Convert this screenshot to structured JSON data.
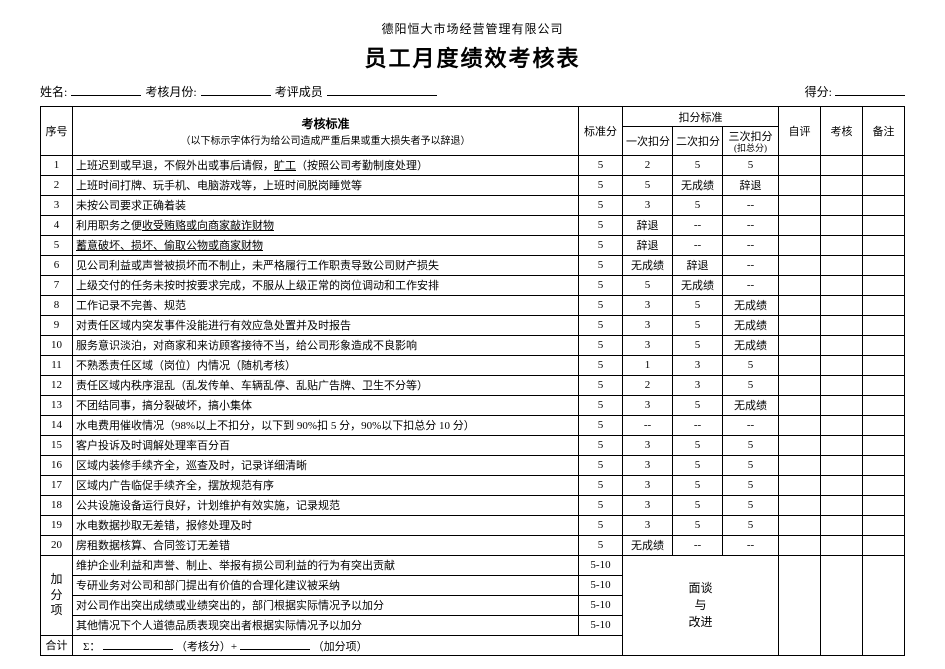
{
  "header": {
    "company": "德阳恒大市场经营管理有限公司",
    "title": "员工月度绩效考核表"
  },
  "meta": {
    "name_label": "姓名:",
    "month_label": "考核月份:",
    "reviewer_label": "考评成员",
    "score_label": "得分:"
  },
  "thead": {
    "seq": "序号",
    "std_title": "考核标准",
    "std_sub": "（以下标示字体行为给公司造成严重后果或重大损失者予以辞退）",
    "base": "标准分",
    "deduct_group": "扣分标准",
    "d1": "一次扣分",
    "d2": "二次扣分",
    "d3_top": "三次扣分",
    "d3_sub": "(扣总分)",
    "self": "自评",
    "check": "考核",
    "note": "备注"
  },
  "rows": [
    {
      "seq": "1",
      "text": "上班迟到或早退，不假外出或事后请假，",
      "ul": "旷工",
      "tail": "（按照公司考勤制度处理）",
      "base": "5",
      "d1": "2",
      "d2": "5",
      "d3": "5"
    },
    {
      "seq": "2",
      "text": "上班时间打牌、玩手机、电脑游戏等，上班时间脱岗睡觉等",
      "base": "5",
      "d1": "5",
      "d2": "无成绩",
      "d3": "辞退"
    },
    {
      "seq": "3",
      "text": "未按公司要求正确着装",
      "base": "5",
      "d1": "3",
      "d2": "5",
      "d3": "--"
    },
    {
      "seq": "4",
      "text": "利用职务之便",
      "ul": "收受贿赂或向商家敲诈财物",
      "base": "5",
      "d1c": "辞退",
      "span": 3
    },
    {
      "seq": "5",
      "text_ul_full": "蓄意破坏、损坏、偷取公物或商家财物",
      "base": "5",
      "d1c": "辞退",
      "span": 3
    },
    {
      "seq": "6",
      "text": "见公司利益或声誉被损坏而不制止，未严格履行工作职责导致公司财产损失",
      "base": "5",
      "d1": "无成绩",
      "d2c": "辞退",
      "span2": 2
    },
    {
      "seq": "7",
      "text": "上级交付的任务未按时按要求完成，不服从上级正常的岗位调动和工作安排",
      "base": "5",
      "d1": "5",
      "d2": "无成绩",
      "d3": "--"
    },
    {
      "seq": "8",
      "text": "工作记录不完善、规范",
      "base": "5",
      "d1": "3",
      "d2": "5",
      "d3": "无成绩"
    },
    {
      "seq": "9",
      "text": "对责任区域内突发事件没能进行有效应急处置并及时报告",
      "base": "5",
      "d1": "3",
      "d2": "5",
      "d3": "无成绩"
    },
    {
      "seq": "10",
      "text": "服务意识淡泊，对商家和来访顾客接待不当，给公司形象造成不良影响",
      "base": "5",
      "d1": "3",
      "d2": "5",
      "d3": "无成绩"
    },
    {
      "seq": "11",
      "text": "不熟悉责任区域（岗位）内情况（随机考核）",
      "base": "5",
      "d1": "1",
      "d2": "3",
      "d3": "5"
    },
    {
      "seq": "12",
      "text": "责任区域内秩序混乱（乱发传单、车辆乱停、乱贴广告牌、卫生不分等）",
      "base": "5",
      "d1": "2",
      "d2": "3",
      "d3": "5"
    },
    {
      "seq": "13",
      "text": "不团结同事，搞分裂破坏，搞小集体",
      "base": "5",
      "d1": "3",
      "d2": "5",
      "d3": "无成绩"
    },
    {
      "seq": "14",
      "text": "水电费用催收情况（98%以上不扣分，以下到 90%扣 5 分，90%以下扣总分 10 分）",
      "base": "5",
      "d1": "--",
      "d2": "--",
      "d3": "--"
    },
    {
      "seq": "15",
      "text": "客户投诉及时调解处理率百分百",
      "base": "5",
      "d1": "3",
      "d2": "5",
      "d3": "5"
    },
    {
      "seq": "16",
      "text": "区域内装修手续齐全，巡查及时，记录详细清晰",
      "base": "5",
      "d1": "3",
      "d2": "5",
      "d3": "5"
    },
    {
      "seq": "17",
      "text": "区域内广告临促手续齐全，摆放规范有序",
      "base": "5",
      "d1": "3",
      "d2": "5",
      "d3": "5"
    },
    {
      "seq": "18",
      "text": "公共设施设备运行良好，计划维护有效实施，记录规范",
      "base": "5",
      "d1": "3",
      "d2": "5",
      "d3": "5"
    },
    {
      "seq": "19",
      "text": "水电数据抄取无差错，报修处理及时",
      "base": "5",
      "d1": "3",
      "d2": "5",
      "d3": "5"
    },
    {
      "seq": "20",
      "text": "房租数据核算、合同签订无差错",
      "base": "5",
      "d1": "无成绩",
      "d2": "--",
      "d3": "--"
    }
  ],
  "bonus": {
    "label_cn1": "加",
    "label_cn2": "分",
    "label_cn3": "项",
    "items": [
      {
        "text": "维护企业利益和声誉、制止、举报有损公司利益的行为有突出贡献",
        "pts": "5-10"
      },
      {
        "text": "专研业务对公司和部门提出有价值的合理化建议被采纳",
        "pts": "5-10"
      },
      {
        "text": "对公司作出突出成绩或业绩突出的，部门根据实际情况予以加分",
        "pts": "5-10"
      },
      {
        "text": "其他情况下个人道德品质表现突出者根据实际情况予以加分",
        "pts": "5-10"
      }
    ],
    "interview_l1": "面谈",
    "interview_l2": "与",
    "interview_l3": "改进"
  },
  "total": {
    "label": "合计",
    "formula_prefix": "Σ：",
    "part1_tail": "（考核分）+",
    "part2_tail": "（加分项）"
  }
}
